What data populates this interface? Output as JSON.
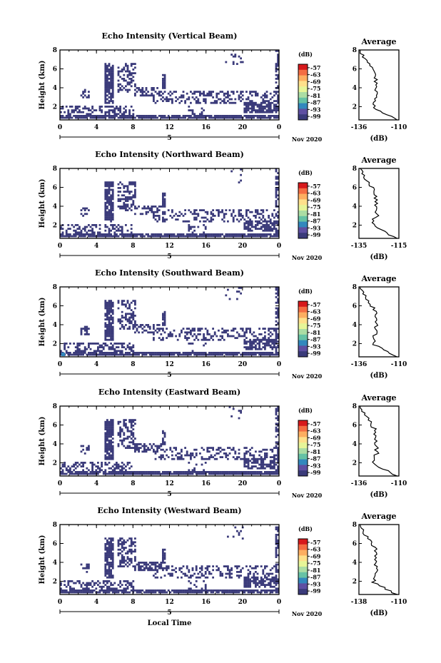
{
  "colorbar": {
    "unit_label": "(dB)",
    "tick_labels": [
      "-57",
      "-63",
      "-69",
      "-75",
      "-81",
      "-87",
      "-93",
      "-99"
    ],
    "colors": [
      "#d7191c",
      "#f46d43",
      "#fdae61",
      "#fee08b",
      "#e6f598",
      "#abdda4",
      "#66c2a5",
      "#3288bd",
      "#5e4fa2",
      "#3a3a7a"
    ]
  },
  "shared": {
    "x_ticks": [
      "0",
      "4",
      "8",
      "12",
      "16",
      "20",
      "0"
    ],
    "date_day": "5",
    "date_label": "Nov 2020",
    "y_label": "Height (km)",
    "y_ticks": [
      "2",
      "4",
      "6",
      "8"
    ],
    "x_axis_label": "Local Time",
    "echo_color": "#3a3a7a"
  },
  "chart_data": [
    {
      "type": "heatmap",
      "title": "Echo Intensity (Vertical Beam)",
      "xlim": [
        0,
        24
      ],
      "ylim": [
        0.6,
        8
      ],
      "avg": {
        "title": "Average",
        "xlabel": "(dB)",
        "xticks": [
          "-136",
          "-110"
        ]
      }
    },
    {
      "type": "heatmap",
      "title": "Echo Intensity (Northward Beam)",
      "xlim": [
        0,
        24
      ],
      "ylim": [
        0.6,
        8
      ],
      "avg": {
        "title": "Average",
        "xlabel": "(dB)",
        "xticks": [
          "-135",
          "-115"
        ]
      }
    },
    {
      "type": "heatmap",
      "title": "Echo Intensity (Southward Beam)",
      "xlim": [
        0,
        24
      ],
      "ylim": [
        0.6,
        8
      ],
      "avg": {
        "title": "Average",
        "xlabel": "(dB)",
        "xticks": [
          "-136",
          "-110"
        ]
      }
    },
    {
      "type": "heatmap",
      "title": "Echo Intensity (Eastward Beam)",
      "xlim": [
        0,
        24
      ],
      "ylim": [
        0.6,
        8
      ],
      "avg": {
        "title": "Average",
        "xlabel": "(dB)",
        "xticks": [
          "-136",
          "-110"
        ]
      }
    },
    {
      "type": "heatmap",
      "title": "Echo Intensity (Westward Beam)",
      "xlim": [
        0,
        24
      ],
      "ylim": [
        0.6,
        8
      ],
      "avg": {
        "title": "Average",
        "xlabel": "(dB)",
        "xticks": [
          "-138",
          "-110"
        ]
      }
    }
  ]
}
